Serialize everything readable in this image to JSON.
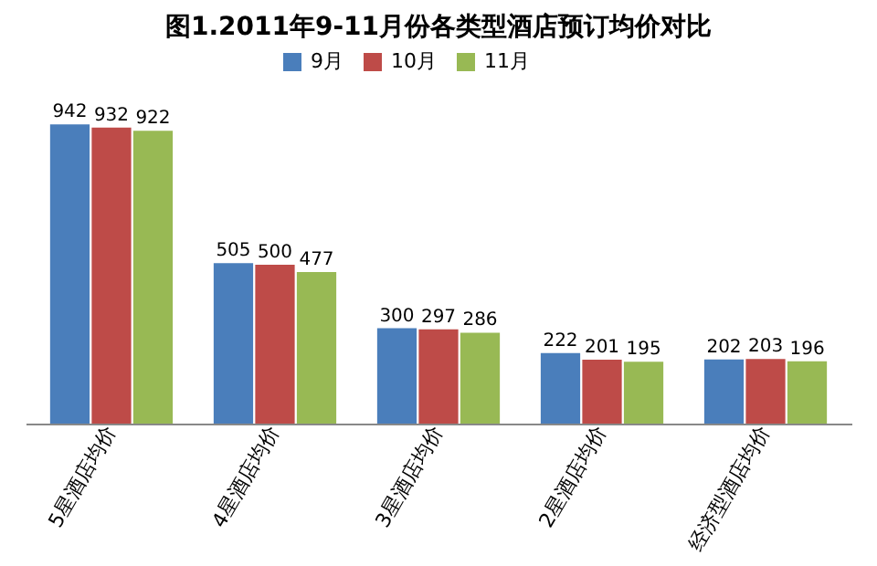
{
  "chart_data": {
    "type": "bar",
    "title": "图1.2011年9-11月份各类型酒店预订均价对比",
    "categories": [
      "5星酒店均价",
      "4星酒店均价",
      "3星酒店均价",
      "2星酒店均价",
      "经济型酒店均价"
    ],
    "series": [
      {
        "name": "9月",
        "color": "#4a7ebb",
        "values": [
          942,
          505,
          300,
          222,
          202
        ]
      },
      {
        "name": "10月",
        "color": "#be4b48",
        "values": [
          932,
          500,
          297,
          201,
          203
        ]
      },
      {
        "name": "11月",
        "color": "#98b954",
        "values": [
          922,
          477,
          286,
          195,
          196
        ]
      }
    ],
    "data_labels": true,
    "legend": "top"
  }
}
